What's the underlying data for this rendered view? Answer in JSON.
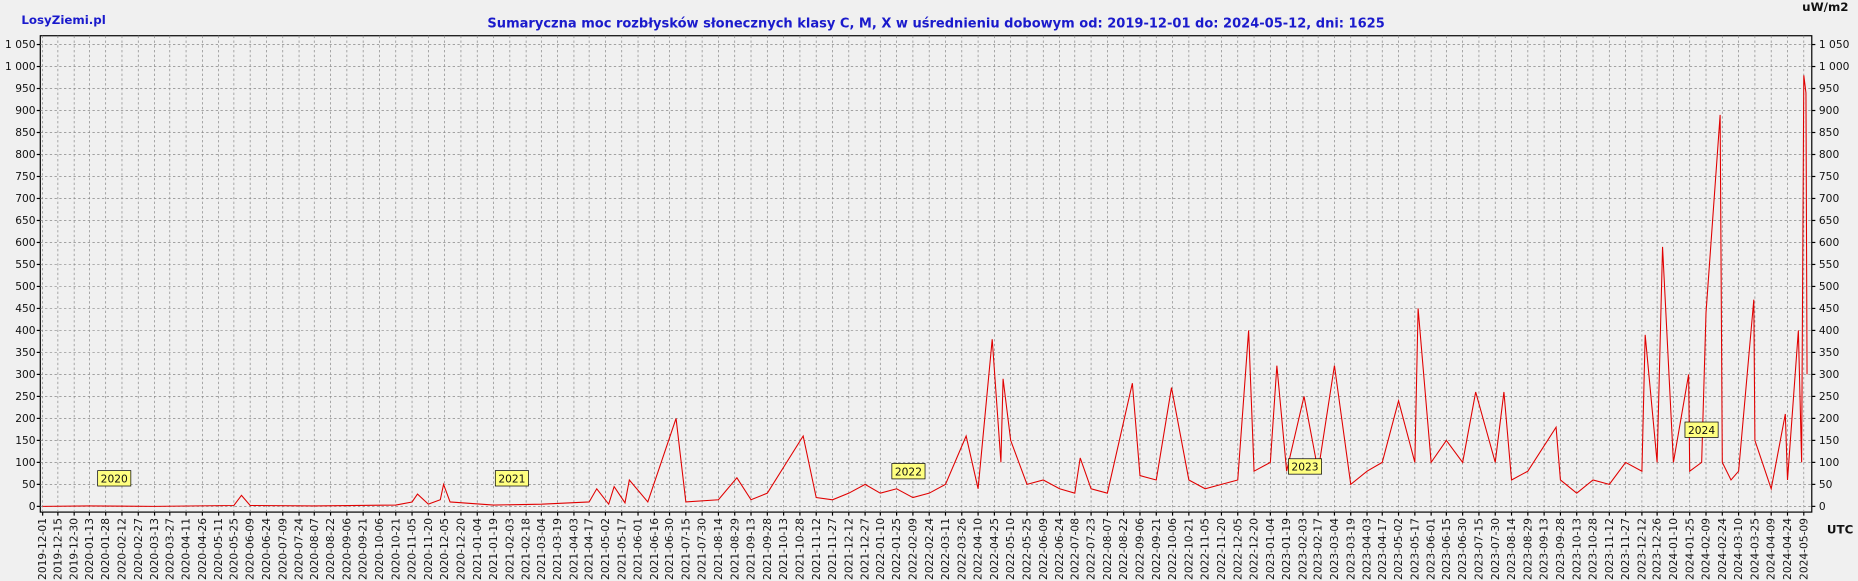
{
  "chart_data": {
    "type": "line",
    "brand": "LosyZiemi.pl",
    "title": "Sumaryczna moc rozbłysków słonecznych klasy C, M, X w uśrednieniu dobowym od: 2019-12-01 do: 2024-05-12, dni: 1625",
    "y_unit": "uW/m2",
    "x_unit": "UTC",
    "grid": true,
    "xlim": [
      "2019-12-01",
      "2024-05-12"
    ],
    "ylim": [
      -13,
      1070
    ],
    "yticks": [
      0,
      50,
      100,
      150,
      200,
      250,
      300,
      350,
      400,
      450,
      500,
      550,
      600,
      650,
      700,
      750,
      800,
      850,
      900,
      950,
      {
        "value": 1000,
        "label": "1 000"
      },
      {
        "value": 1050,
        "label": "1 050"
      }
    ],
    "xticks": [
      "2019-12-01",
      "2019-12-15",
      "2019-12-30",
      "2020-01-13",
      "2020-01-28",
      "2020-02-12",
      "2020-02-27",
      "2020-03-13",
      "2020-03-27",
      "2020-04-11",
      "2020-04-26",
      "2020-05-11",
      "2020-05-25",
      "2020-06-09",
      "2020-06-24",
      "2020-07-09",
      "2020-07-24",
      "2020-08-07",
      "2020-08-22",
      "2020-09-06",
      "2020-09-21",
      "2020-10-06",
      "2020-10-21",
      "2020-11-05",
      "2020-11-20",
      "2020-12-05",
      "2020-12-20",
      "2021-01-04",
      "2021-01-19",
      "2021-02-03",
      "2021-02-18",
      "2021-03-04",
      "2021-03-19",
      "2021-04-03",
      "2021-04-17",
      "2021-05-02",
      "2021-05-17",
      "2021-06-01",
      "2021-06-16",
      "2021-06-30",
      "2021-07-15",
      "2021-07-30",
      "2021-08-14",
      "2021-08-29",
      "2021-09-13",
      "2021-09-28",
      "2021-10-13",
      "2021-10-28",
      "2021-11-12",
      "2021-11-27",
      "2021-12-12",
      "2021-12-27",
      "2022-01-10",
      "2022-01-25",
      "2022-02-09",
      "2022-02-24",
      "2022-03-11",
      "2022-03-26",
      "2022-04-10",
      "2022-04-25",
      "2022-05-10",
      "2022-05-25",
      "2022-06-09",
      "2022-06-24",
      "2022-07-08",
      "2022-07-23",
      "2022-08-07",
      "2022-08-22",
      "2022-09-06",
      "2022-09-21",
      "2022-10-06",
      "2022-10-21",
      "2022-11-05",
      "2022-11-20",
      "2022-12-05",
      "2022-12-20",
      "2023-01-04",
      "2023-01-19",
      "2023-02-03",
      "2023-02-17",
      "2023-03-04",
      "2023-03-19",
      "2023-04-03",
      "2023-04-17",
      "2023-05-02",
      "2023-05-17",
      "2023-06-01",
      "2023-06-15",
      "2023-06-30",
      "2023-07-15",
      "2023-07-30",
      "2023-08-14",
      "2023-08-29",
      "2023-09-13",
      "2023-09-28",
      "2023-10-13",
      "2023-10-28",
      "2023-11-12",
      "2023-11-27",
      "2023-12-12",
      "2023-12-26",
      "2024-01-10",
      "2024-01-25",
      "2024-02-09",
      "2024-02-24",
      "2024-03-10",
      "2024-03-25",
      "2024-04-09",
      "2024-04-24",
      "2024-05-09"
    ],
    "annotations": [
      {
        "text": "2020",
        "x": "2020-01-01"
      },
      {
        "text": "2021",
        "x": "2021-01-01"
      },
      {
        "text": "2022",
        "x": "2022-01-01"
      },
      {
        "text": "2023",
        "x": "2023-01-01"
      },
      {
        "text": "2024",
        "x": "2024-01-01"
      }
    ],
    "x": [
      "2019-12-01",
      "2020-01-13",
      "2020-03-13",
      "2020-05-25",
      "2020-06-01",
      "2020-06-09",
      "2020-08-07",
      "2020-10-21",
      "2020-11-05",
      "2020-11-10",
      "2020-11-20",
      "2020-12-01",
      "2020-12-04",
      "2020-12-10",
      "2021-01-19",
      "2021-03-04",
      "2021-04-17",
      "2021-04-24",
      "2021-05-05",
      "2021-05-10",
      "2021-05-20",
      "2021-05-24",
      "2021-06-10",
      "2021-07-06",
      "2021-07-15",
      "2021-08-14",
      "2021-08-31",
      "2021-09-13",
      "2021-09-28",
      "2021-10-31",
      "2021-11-12",
      "2021-11-27",
      "2021-12-12",
      "2021-12-27",
      "2022-01-10",
      "2022-01-25",
      "2022-02-09",
      "2022-02-24",
      "2022-03-11",
      "2022-03-30",
      "2022-04-10",
      "2022-04-23",
      "2022-05-01",
      "2022-05-03",
      "2022-05-10",
      "2022-05-25",
      "2022-06-09",
      "2022-06-24",
      "2022-07-08",
      "2022-07-13",
      "2022-07-23",
      "2022-08-07",
      "2022-08-30",
      "2022-09-06",
      "2022-09-21",
      "2022-10-05",
      "2022-10-21",
      "2022-11-05",
      "2022-11-20",
      "2022-12-05",
      "2022-12-15",
      "2022-12-20",
      "2023-01-04",
      "2023-01-10",
      "2023-01-19",
      "2023-02-04",
      "2023-02-17",
      "2023-03-04",
      "2023-03-19",
      "2023-04-03",
      "2023-04-17",
      "2023-05-02",
      "2023-05-17",
      "2023-05-20",
      "2023-06-01",
      "2023-06-15",
      "2023-06-30",
      "2023-07-12",
      "2023-07-30",
      "2023-08-07",
      "2023-08-14",
      "2023-08-29",
      "2023-09-24",
      "2023-09-28",
      "2023-10-13",
      "2023-10-28",
      "2023-11-12",
      "2023-11-27",
      "2023-12-12",
      "2023-12-15",
      "2023-12-26",
      "2023-12-31",
      "2024-01-10",
      "2024-01-24",
      "2024-01-25",
      "2024-02-05",
      "2024-02-09",
      "2024-02-22",
      "2024-02-24",
      "2024-03-03",
      "2024-03-10",
      "2024-03-24",
      "2024-03-25",
      "2024-04-09",
      "2024-04-22",
      "2024-04-24",
      "2024-05-04",
      "2024-05-07",
      "2024-05-09",
      "2024-05-11",
      "2024-05-12"
    ],
    "series": [
      {
        "color": "#e00000",
        "values": [
          0,
          1,
          0,
          2,
          25,
          2,
          1,
          3,
          10,
          28,
          5,
          15,
          50,
          10,
          3,
          5,
          10,
          40,
          5,
          45,
          8,
          60,
          10,
          200,
          10,
          15,
          65,
          15,
          30,
          160,
          20,
          15,
          30,
          50,
          30,
          40,
          20,
          30,
          50,
          160,
          40,
          380,
          100,
          290,
          150,
          50,
          60,
          40,
          30,
          110,
          40,
          30,
          280,
          70,
          60,
          270,
          60,
          40,
          50,
          60,
          400,
          80,
          100,
          320,
          80,
          250,
          80,
          320,
          50,
          80,
          100,
          240,
          100,
          450,
          100,
          150,
          100,
          260,
          100,
          260,
          60,
          80,
          180,
          60,
          30,
          60,
          50,
          100,
          80,
          390,
          100,
          590,
          100,
          300,
          80,
          100,
          440,
          890,
          100,
          60,
          80,
          470,
          150,
          40,
          210,
          60,
          400,
          100,
          980,
          940,
          300
        ]
      }
    ]
  }
}
